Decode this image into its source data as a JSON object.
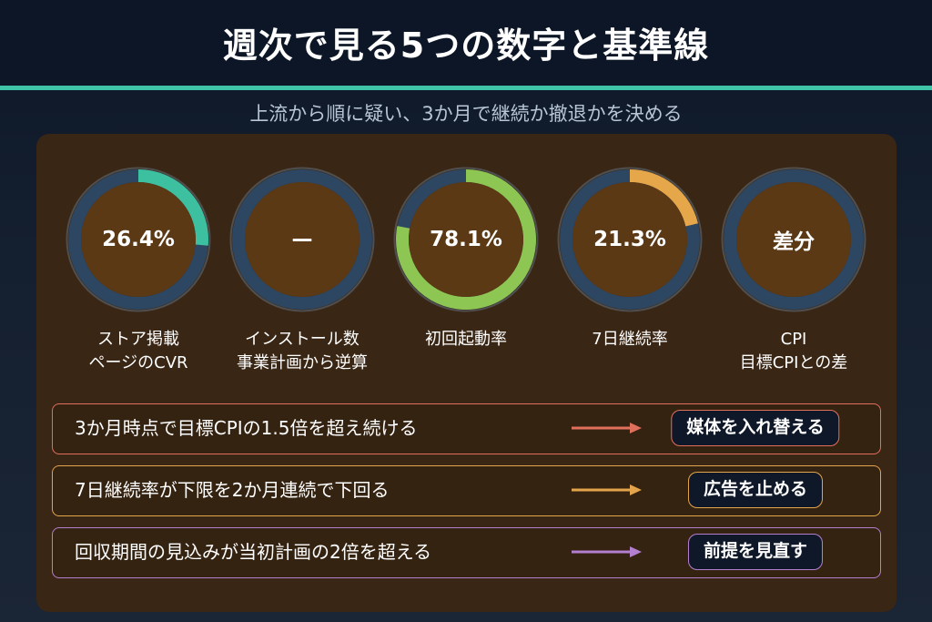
{
  "title": "週次で見る5つの数字と基準線",
  "subtitle": "上流から順に疑い、3か月で継続か撤退かを決める",
  "theme": {
    "accent_line": "#3fc4a7"
  },
  "gauges": [
    {
      "value_text": "26.4%",
      "progress": 0.264,
      "color": "#3cc0a0",
      "label_lines": [
        "ストア掲載",
        "ページのCVR"
      ]
    },
    {
      "value_text": "—",
      "label_lines": [
        "インストール数",
        "事業計画から逆算"
      ]
    },
    {
      "value_text": "78.1%",
      "progress": 0.781,
      "color": "#8dc653",
      "label_lines": [
        "初回起動率"
      ]
    },
    {
      "value_text": "21.3%",
      "progress": 0.213,
      "color": "#e6a64a",
      "label_lines": [
        "7日継続率"
      ]
    },
    {
      "value_text": "差分",
      "label_lines": [
        "CPI",
        "目標CPIとの差"
      ]
    }
  ],
  "rules": [
    {
      "condition": "3か月時点で目標CPIの1.5倍を超え続ける",
      "action": "媒体を入れ替える",
      "color": "#e0705c"
    },
    {
      "condition": "7日継続率が下限を2か月連続で下回る",
      "action": "広告を止める",
      "color": "#e3a44b"
    },
    {
      "condition": "回収期間の見込みが当初計画の2倍を超える",
      "action": "前提を見直す",
      "color": "#b57fd0"
    }
  ]
}
